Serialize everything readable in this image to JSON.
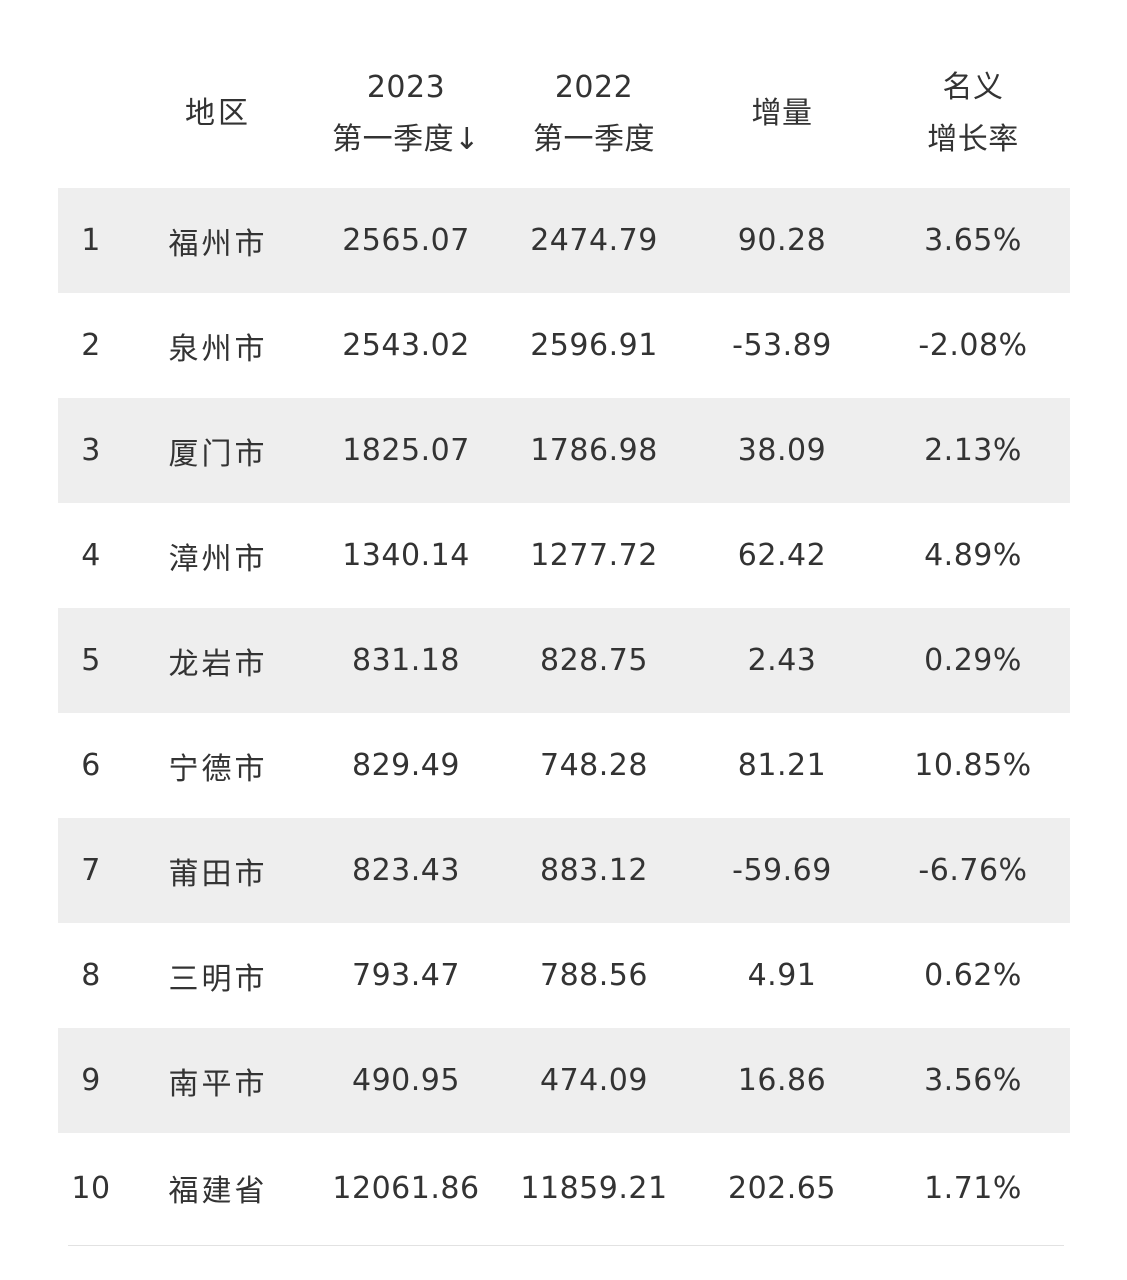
{
  "header": {
    "rank": "",
    "region": "地区",
    "v2023_line1": "2023",
    "v2023_line2": "第一季度↓",
    "v2022_line1": "2022",
    "v2022_line2": "第一季度",
    "increase": "增量",
    "rate_line1": "名义",
    "rate_line2": "增长率"
  },
  "rows": [
    {
      "rank": "1",
      "region": "福州市",
      "v2023": "2565.07",
      "v2022": "2474.79",
      "increase": "90.28",
      "rate": "3.65%"
    },
    {
      "rank": "2",
      "region": "泉州市",
      "v2023": "2543.02",
      "v2022": "2596.91",
      "increase": "-53.89",
      "rate": "-2.08%"
    },
    {
      "rank": "3",
      "region": "厦门市",
      "v2023": "1825.07",
      "v2022": "1786.98",
      "increase": "38.09",
      "rate": "2.13%"
    },
    {
      "rank": "4",
      "region": "漳州市",
      "v2023": "1340.14",
      "v2022": "1277.72",
      "increase": "62.42",
      "rate": "4.89%"
    },
    {
      "rank": "5",
      "region": "龙岩市",
      "v2023": "831.18",
      "v2022": "828.75",
      "increase": "2.43",
      "rate": "0.29%"
    },
    {
      "rank": "6",
      "region": "宁德市",
      "v2023": "829.49",
      "v2022": "748.28",
      "increase": "81.21",
      "rate": "10.85%"
    },
    {
      "rank": "7",
      "region": "莆田市",
      "v2023": "823.43",
      "v2022": "883.12",
      "increase": "-59.69",
      "rate": "-6.76%"
    },
    {
      "rank": "8",
      "region": "三明市",
      "v2023": "793.47",
      "v2022": "788.56",
      "increase": "4.91",
      "rate": "0.62%"
    },
    {
      "rank": "9",
      "region": "南平市",
      "v2023": "490.95",
      "v2022": "474.09",
      "increase": "16.86",
      "rate": "3.56%"
    },
    {
      "rank": "10",
      "region": "福建省",
      "v2023": "12061.86",
      "v2022": "11859.21",
      "increase": "202.65",
      "rate": "1.71%"
    }
  ],
  "colors": {
    "shaded_row": "#eeeeee",
    "text": "#333333",
    "background": "#ffffff"
  }
}
